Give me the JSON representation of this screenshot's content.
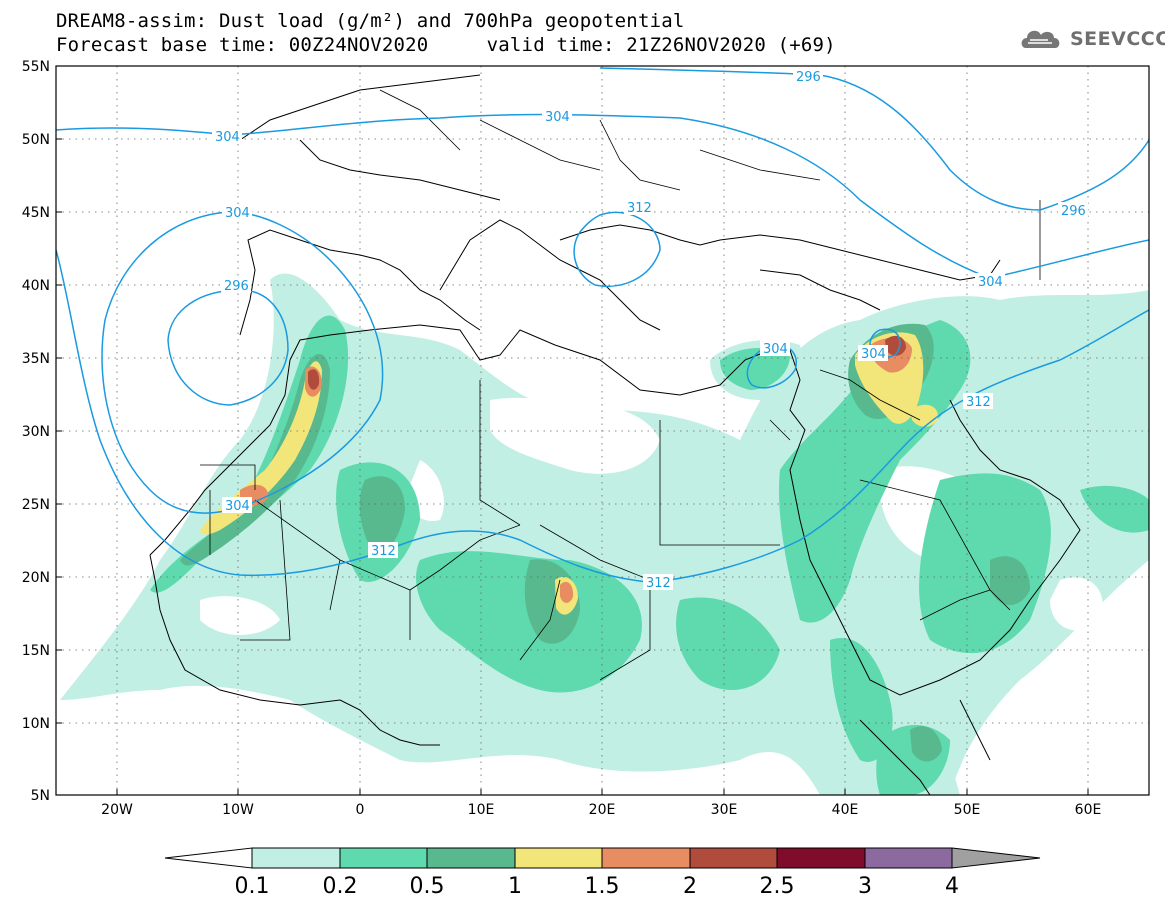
{
  "header": {
    "title_line1": "DREAM8-assim: Dust load (g/m²) and 700hPa geopotential",
    "title_line2": "Forecast base time: 00Z24NOV2020     valid time: 21Z26NOV2020 (+69)"
  },
  "logo": {
    "text": "SEEVCCC",
    "icon": "cloud-icon"
  },
  "map": {
    "lon_range": [
      -25,
      65
    ],
    "lat_range": [
      5,
      55
    ],
    "lat_labels": [
      "55N",
      "50N",
      "45N",
      "40N",
      "35N",
      "30N",
      "25N",
      "20N",
      "15N",
      "10N",
      "5N"
    ],
    "lon_labels": [
      "20W",
      "10W",
      "0",
      "10E",
      "20E",
      "30E",
      "40E",
      "50E",
      "60E"
    ],
    "contour_labels": [
      "296",
      "304",
      "312",
      "304",
      "296",
      "304",
      "312",
      "312",
      "304",
      "304",
      "312",
      "296"
    ]
  },
  "colorbar": {
    "ticks": [
      "0.1",
      "0.2",
      "0.5",
      "1",
      "1.5",
      "2",
      "2.5",
      "3",
      "4"
    ],
    "colors": [
      "#ffffff",
      "#c2efe4",
      "#5fd9ae",
      "#58b88e",
      "#f2e57a",
      "#e88c62",
      "#b04c3c",
      "#7e0c2a",
      "#8c6aa0",
      "#a0a0a0"
    ]
  }
}
